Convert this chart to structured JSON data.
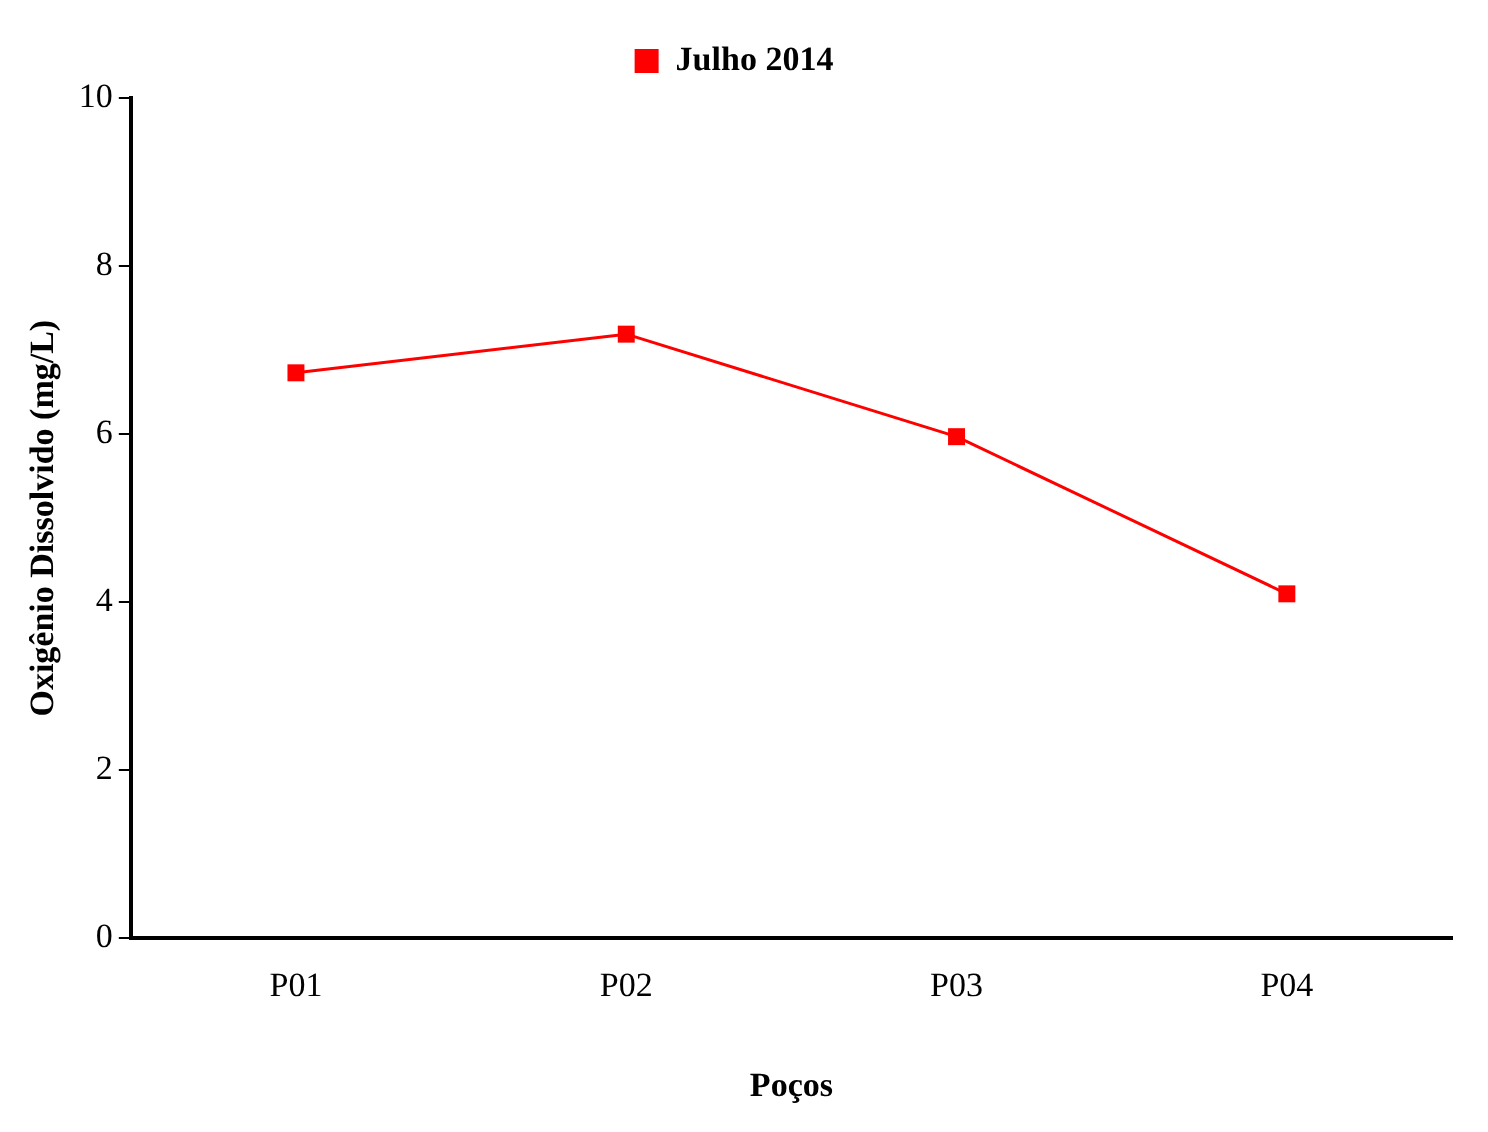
{
  "chart_data": {
    "type": "line",
    "xlabel": "Poços",
    "ylabel": "Oxigênio Dissolvido (mg/L)",
    "categories": [
      "P01",
      "P02",
      "P03",
      "P04"
    ],
    "series": [
      {
        "name": "Julho 2014",
        "color": "#ff0000",
        "values": [
          6.73,
          7.19,
          5.97,
          4.1
        ]
      }
    ],
    "ylim": [
      0,
      10
    ],
    "yticks": [
      0,
      2,
      4,
      6,
      8,
      10
    ],
    "grid": false,
    "legend": "top",
    "marker": "square",
    "line_style": "solid"
  }
}
